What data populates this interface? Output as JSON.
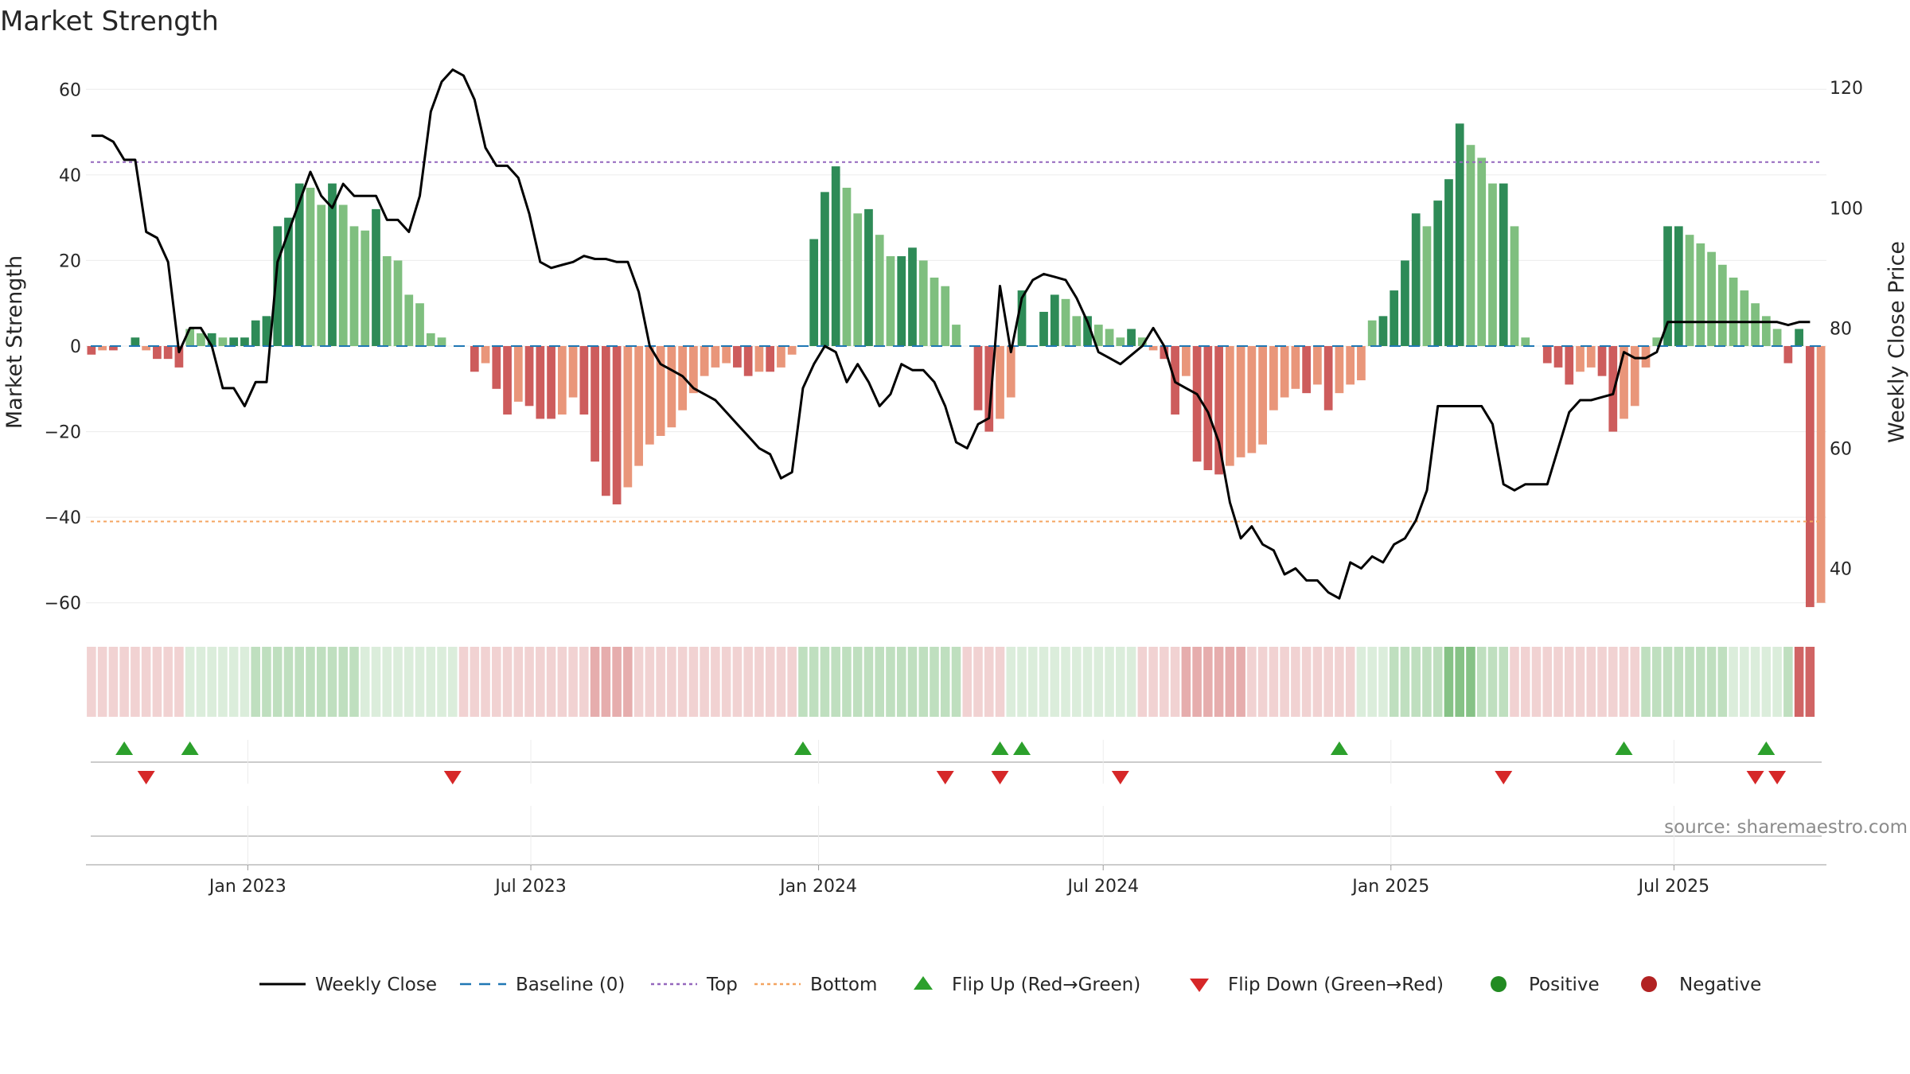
{
  "chart_data": {
    "type": "bar+line",
    "title": "Market Strength",
    "ylabel_left": "Market Strength",
    "ylabel_right": "Weekly Close Price",
    "source": "source: sharemaestro.com",
    "ylim_left": [
      -66,
      66
    ],
    "ylim_right": [
      30,
      124
    ],
    "yticks_left": [
      60,
      40,
      20,
      0,
      -20,
      -40,
      -60
    ],
    "yticks_right": [
      120,
      100,
      80,
      60,
      40
    ],
    "top_line": 43,
    "bottom_line": -41,
    "x_start": "2022-09-23",
    "x_step_days": 7,
    "x_ticks": [
      {
        "label": "Jan 2023",
        "date": "2023-01-01"
      },
      {
        "label": "Jul 2023",
        "date": "2023-07-01"
      },
      {
        "label": "Jan 2024",
        "date": "2024-01-01"
      },
      {
        "label": "Jul 2024",
        "date": "2024-07-01"
      },
      {
        "label": "Jan 2025",
        "date": "2025-01-01"
      },
      {
        "label": "Jul 2025",
        "date": "2025-07-01"
      }
    ],
    "strength": [
      -2,
      -1,
      -1,
      0,
      2,
      -1,
      -3,
      -3,
      -5,
      4,
      3,
      3,
      2,
      2,
      2,
      6,
      7,
      28,
      30,
      38,
      37,
      33,
      38,
      33,
      28,
      27,
      32,
      21,
      20,
      12,
      10,
      3,
      2,
      0,
      0,
      -6,
      -4,
      -10,
      -16,
      -13,
      -14,
      -17,
      -17,
      -16,
      -12,
      -16,
      -27,
      -35,
      -37,
      -33,
      -28,
      -23,
      -21,
      -19,
      -15,
      -11,
      -7,
      -5,
      -4,
      -5,
      -7,
      -6,
      -6,
      -5,
      -2,
      0,
      25,
      36,
      42,
      37,
      31,
      32,
      26,
      21,
      21,
      23,
      20,
      16,
      14,
      5,
      0,
      -15,
      -20,
      -17,
      -12,
      13,
      0,
      8,
      12,
      11,
      7,
      7,
      5,
      4,
      2,
      4,
      2,
      -1,
      -3,
      -16,
      -7,
      -27,
      -29,
      -30,
      -28,
      -26,
      -25,
      -23,
      -15,
      -12,
      -10,
      -11,
      -9,
      -15,
      -11,
      -9,
      -8,
      6,
      7,
      13,
      20,
      31,
      28,
      34,
      39,
      52,
      47,
      44,
      38,
      38,
      28,
      2,
      0,
      -4,
      -5,
      -9,
      -6,
      -5,
      -7,
      -20,
      -17,
      -14,
      -5,
      2,
      28,
      28,
      26,
      24,
      22,
      19,
      16,
      13,
      10,
      7,
      4,
      -4,
      4,
      -61,
      -60
    ],
    "close": [
      112,
      112,
      111,
      108,
      108,
      96,
      95,
      91,
      76,
      80,
      80,
      77,
      70,
      70,
      67,
      71,
      71,
      91,
      96,
      101,
      106,
      102,
      100,
      104,
      102,
      102,
      102,
      98,
      98,
      96,
      102,
      116,
      121,
      123,
      122,
      118,
      110,
      107,
      107,
      105,
      99,
      91,
      90,
      90.5,
      91,
      92,
      91.5,
      91.5,
      91,
      91,
      86,
      77,
      74,
      73,
      72,
      70,
      69,
      68,
      66,
      64,
      62,
      60,
      59,
      55,
      56,
      70,
      74,
      77,
      76,
      71,
      74,
      71,
      67,
      69,
      74,
      73,
      73,
      71,
      67,
      61,
      60,
      64,
      65,
      87,
      76,
      85,
      88,
      89,
      88.5,
      88,
      85,
      81,
      76,
      75,
      74,
      75.5,
      77,
      80,
      77,
      71,
      70,
      69,
      66,
      61,
      51,
      45,
      47,
      44,
      43,
      39,
      40,
      38,
      38,
      36,
      35,
      41,
      40,
      42,
      41,
      44,
      45,
      48,
      53,
      67,
      67,
      67,
      67,
      67,
      64,
      54,
      53,
      54,
      54,
      54,
      60,
      66,
      68,
      68,
      68.5,
      69,
      76,
      75,
      75,
      76,
      81,
      81,
      81,
      81,
      81,
      81,
      81,
      81,
      81,
      81,
      81,
      80.5,
      81,
      81
    ],
    "band": [
      -1,
      -1,
      -1,
      -1,
      -1,
      -1,
      -1,
      -1,
      -1,
      1,
      1,
      1,
      1,
      1,
      1,
      2,
      2,
      2,
      2,
      2,
      2,
      2,
      2,
      2,
      2,
      1,
      1,
      1,
      1,
      1,
      1,
      1,
      1,
      1,
      -1,
      -1,
      -1,
      -1,
      -1,
      -1,
      -1,
      -1,
      -1,
      -1,
      -1,
      -1,
      -2,
      -2,
      -2,
      -2,
      -1,
      -1,
      -1,
      -1,
      -1,
      -1,
      -1,
      -1,
      -1,
      -1,
      -1,
      -1,
      -1,
      -1,
      -1,
      2,
      2,
      2,
      2,
      2,
      2,
      2,
      2,
      2,
      2,
      2,
      2,
      2,
      2,
      2,
      -1,
      -1,
      -1,
      -1,
      1,
      1,
      1,
      1,
      1,
      1,
      1,
      1,
      1,
      1,
      1,
      1,
      -1,
      -1,
      -1,
      -1,
      -2,
      -2,
      -2,
      -2,
      -2,
      -2,
      -1,
      -1,
      -1,
      -1,
      -1,
      -1,
      -1,
      -1,
      -1,
      -1,
      1,
      1,
      1,
      2,
      2,
      2,
      2,
      2,
      3,
      3,
      3,
      2,
      2,
      2,
      -1,
      -1,
      -1,
      -1,
      -1,
      -1,
      -1,
      -1,
      -1,
      -1,
      -1,
      -1,
      2,
      2,
      2,
      2,
      2,
      2,
      2,
      2,
      1,
      1,
      1,
      1,
      1,
      2,
      -3,
      -3
    ],
    "flips_up": [
      3,
      9,
      65,
      83,
      85,
      114,
      140,
      153
    ],
    "flips_down": [
      5,
      33,
      78,
      83,
      94,
      129,
      152,
      154
    ],
    "legend": [
      {
        "label": "Weekly Close",
        "style": "line",
        "color": "#000000"
      },
      {
        "label": "Baseline (0)",
        "style": "dash",
        "color": "#1f77b4"
      },
      {
        "label": "Top",
        "style": "dot",
        "color": "#9467bd"
      },
      {
        "label": "Bottom",
        "style": "dot",
        "color": "#f4a460"
      },
      {
        "label": "Flip Up (Red→Green)",
        "style": "triangle-up",
        "color": "#2ca02c"
      },
      {
        "label": "Flip Down (Green→Red)",
        "style": "triangle-down",
        "color": "#d62728"
      },
      {
        "label": "Positive",
        "style": "circle",
        "color": "#228b22"
      },
      {
        "label": "Negative",
        "style": "circle",
        "color": "#b22222"
      }
    ]
  },
  "colors": {
    "pos_dark": "#2e8b57",
    "pos_light": "#7fbf7f",
    "neg_dark": "#cd5c5c",
    "neg_light": "#e9967a",
    "band_pos": "#7fbf7f",
    "band_neg": "#cd5c5c"
  }
}
